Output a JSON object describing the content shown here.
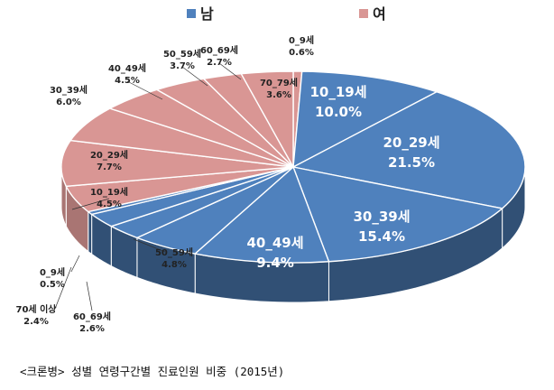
{
  "chart_data": {
    "type": "pie",
    "title": "<크론병> 성별 연령구간별 진료인원 비중 (2015년)",
    "legend": {
      "placement": "top",
      "entries": [
        {
          "label": "남",
          "color": "#4F81BD"
        },
        {
          "label": "여",
          "color": "#D99694"
        }
      ]
    },
    "slices": [
      {
        "label": "0_9세",
        "value": 0.6,
        "value_label": "0.6%",
        "group": "여"
      },
      {
        "label": "10_19세",
        "value": 10.0,
        "value_label": "10.0%",
        "group": "남"
      },
      {
        "label": "20_29세",
        "value": 21.5,
        "value_label": "21.5%",
        "group": "남"
      },
      {
        "label": "30_39세",
        "value": 15.4,
        "value_label": "15.4%",
        "group": "남"
      },
      {
        "label": "40_49세",
        "value": 9.4,
        "value_label": "9.4%",
        "group": "남"
      },
      {
        "label": "50_59세",
        "value": 4.8,
        "value_label": "4.8%",
        "group": "남"
      },
      {
        "label": "60_69세",
        "value": 2.6,
        "value_label": "2.6%",
        "group": "남"
      },
      {
        "label": "70세 이상",
        "value": 2.4,
        "value_label": "2.4%",
        "group": "남"
      },
      {
        "label": "0_9세",
        "value": 0.5,
        "value_label": "0.5%",
        "group": "남"
      },
      {
        "label": "10_19세",
        "value": 4.5,
        "value_label": "4.5%",
        "group": "여"
      },
      {
        "label": "20_29세",
        "value": 7.7,
        "value_label": "7.7%",
        "group": "여"
      },
      {
        "label": "30_39세",
        "value": 6.0,
        "value_label": "6.0%",
        "group": "여"
      },
      {
        "label": "40_49세",
        "value": 4.5,
        "value_label": "4.5%",
        "group": "여"
      },
      {
        "label": "50_59세",
        "value": 3.7,
        "value_label": "3.7%",
        "group": "여"
      },
      {
        "label": "60_69세",
        "value": 2.7,
        "value_label": "2.7%",
        "group": "여"
      },
      {
        "label": "70_79세",
        "value": 3.6,
        "value_label": "3.6%",
        "group": "여"
      }
    ]
  }
}
